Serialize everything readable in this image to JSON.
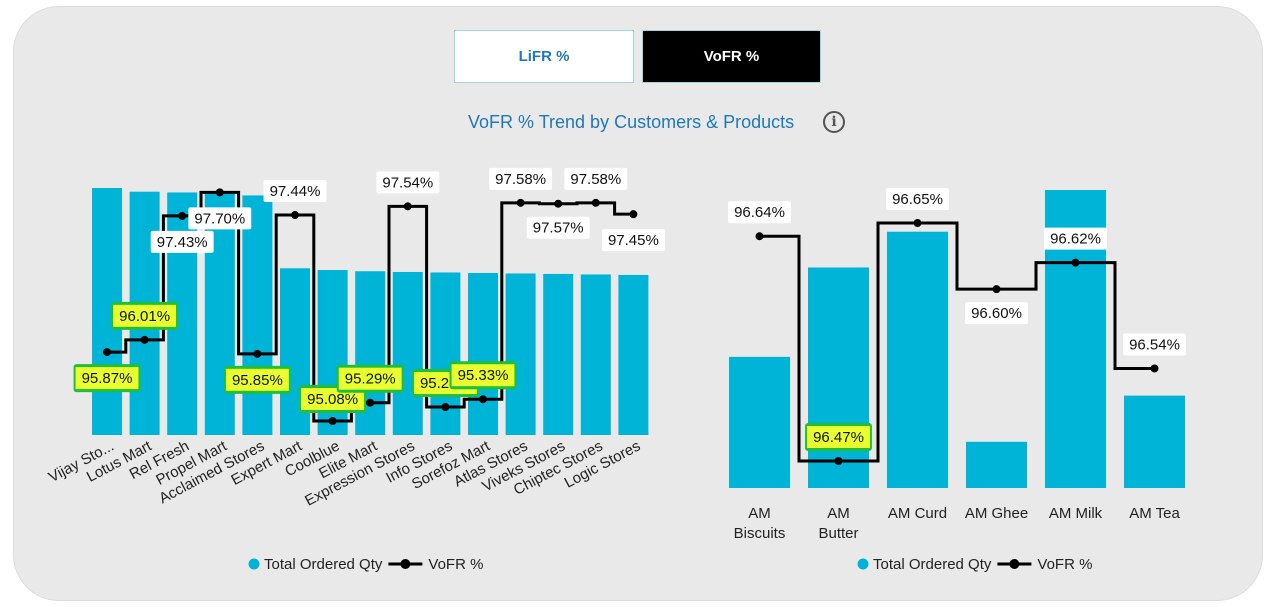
{
  "tabs": [
    {
      "label": "LiFR %",
      "active": false
    },
    {
      "label": "VoFR %",
      "active": true
    }
  ],
  "title": "VoFR % Trend by Customers & Products",
  "info_icon": "info-icon",
  "colors": {
    "bar": "#00b4d8",
    "line": "#000000",
    "highlight": "#e9ff2e",
    "highlight_edge": "#1fbf3a",
    "tab_active_bg": "#000000",
    "title": "#1f78b4"
  },
  "chart_data": [
    {
      "type": "bar",
      "id": "customers",
      "categories": [
        "Vijay Sto...",
        "Lotus Mart",
        "Rel Fresh",
        "Propel Mart",
        "Acclaimed Stores",
        "Expert Mart",
        "Coolblue",
        "Elite Mart",
        "Expression Stores",
        "Info Stores",
        "Sorefoz Mart",
        "Atlas Stores",
        "Viveks Stores",
        "Chiptec Stores",
        "Logic Stores"
      ],
      "series": [
        {
          "name": "Total Ordered Qty",
          "kind": "bar",
          "values": [
            100,
            98.5,
            98.2,
            98.0,
            97.0,
            67.5,
            66.8,
            66.3,
            66.0,
            65.8,
            65.6,
            65.4,
            65.2,
            65.0,
            64.8
          ]
        },
        {
          "name": "VoFR %",
          "kind": "step-line",
          "values": [
            95.87,
            96.01,
            97.43,
            97.7,
            95.85,
            97.44,
            95.08,
            95.29,
            97.54,
            95.24,
            95.33,
            97.58,
            97.57,
            97.58,
            97.45
          ]
        }
      ],
      "data_labels": [
        "95.87%",
        "96.01%",
        "97.43%",
        "97.70%",
        "95.85%",
        "97.44%",
        "95.08%",
        "95.29%",
        "97.54%",
        "95.24%",
        "95.33%",
        "97.58%",
        "97.57%",
        "97.58%",
        "97.45%"
      ],
      "highlighted": [
        true,
        true,
        false,
        false,
        true,
        false,
        true,
        true,
        false,
        true,
        true,
        false,
        false,
        false,
        false
      ],
      "legend": [
        "Total Ordered Qty",
        "VoFR %"
      ],
      "legend_position": "bottom-center",
      "ylim_line": [
        95.0,
        97.75
      ]
    },
    {
      "type": "bar",
      "id": "products",
      "categories": [
        "AM Biscuits",
        "AM Butter",
        "AM Curd",
        "AM Ghee",
        "AM Milk",
        "AM Tea"
      ],
      "series": [
        {
          "name": "Total Ordered Qty",
          "kind": "bar",
          "values": [
            44,
            74,
            86,
            15.5,
            100,
            31
          ]
        },
        {
          "name": "VoFR %",
          "kind": "step-line",
          "values": [
            96.64,
            96.47,
            96.65,
            96.6,
            96.62,
            96.54
          ]
        }
      ],
      "data_labels": [
        "96.64%",
        "96.47%",
        "96.65%",
        "96.60%",
        "96.62%",
        "96.54%"
      ],
      "highlighted": [
        false,
        true,
        false,
        false,
        false,
        false
      ],
      "legend": [
        "Total Ordered Qty",
        "VoFR %"
      ],
      "legend_position": "bottom-center",
      "ylim_line": [
        96.47,
        96.65
      ]
    }
  ]
}
